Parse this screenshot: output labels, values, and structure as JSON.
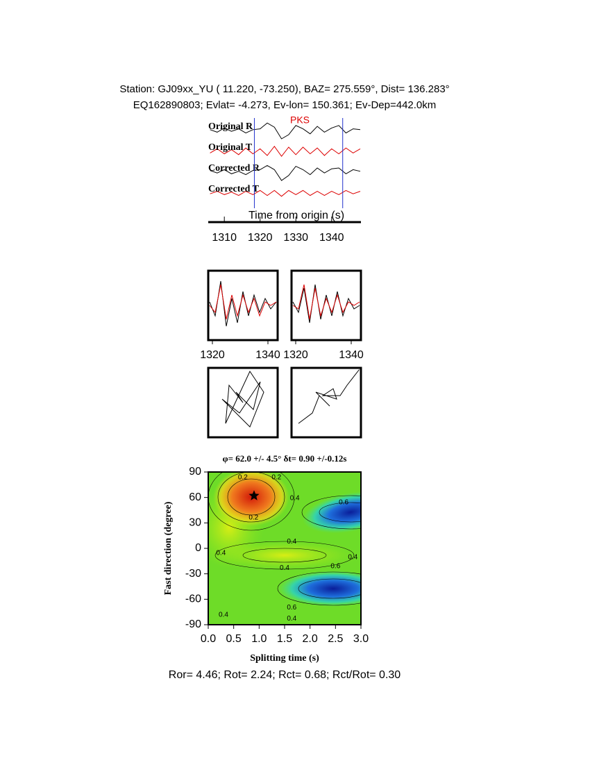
{
  "header": {
    "line1": "Station: GJ09xx_YU (  11.220,  -73.250), BAZ=  275.559°, Dist=  136.283°",
    "line2": "EQ162890803; Evlat=  -4.273, Ev-lon= 150.361; Ev-Dep=442.0km"
  },
  "footer": "Ror= 4.46; Rot= 2.24; Rct= 0.68; Rct/Rot= 0.30",
  "chart_data": [
    {
      "type": "traces",
      "annotation": "PKS",
      "xlabel": "Time from origin (s)",
      "xlim": [
        1305.5,
        1348.2
      ],
      "xticks": [
        1310,
        1320,
        1330,
        1340
      ],
      "markers": [
        1318.4,
        1343.1
      ],
      "x": [
        1306,
        1308,
        1310,
        1312,
        1314,
        1316,
        1318,
        1320,
        1322,
        1324,
        1326,
        1328,
        1330,
        1332,
        1334,
        1336,
        1338,
        1340,
        1342,
        1344,
        1346,
        1348
      ],
      "series": [
        {
          "name": "Original R",
          "color": "#000000",
          "values": [
            0.1,
            -0.2,
            0.3,
            -0.1,
            0.2,
            -0.3,
            0.1,
            0.2,
            0.9,
            0.4,
            -1,
            -0.5,
            0.6,
            0.2,
            -0.4,
            0.5,
            -0.2,
            0.3,
            0.6,
            -0.3,
            0.2,
            0.1
          ]
        },
        {
          "name": "Original T",
          "color": "#dd0000",
          "values": [
            -0.2,
            0.3,
            -0.3,
            0.2,
            -0.4,
            0.4,
            -0.3,
            0.3,
            -0.5,
            0.6,
            -0.6,
            0.5,
            -0.4,
            0.5,
            -0.3,
            0.4,
            -0.5,
            0.3,
            -0.3,
            0.4,
            -0.2,
            0.3
          ]
        },
        {
          "name": "Corrected R",
          "color": "#000000",
          "values": [
            0.2,
            -0.1,
            0.3,
            -0.2,
            0.1,
            -0.3,
            0.2,
            0.3,
            0.8,
            0.3,
            -1,
            -0.4,
            0.7,
            0.3,
            -0.3,
            0.5,
            -0.1,
            0.4,
            0.5,
            -0.2,
            0.3,
            0.1
          ]
        },
        {
          "name": "Corrected T",
          "color": "#dd0000",
          "values": [
            -0.1,
            0.2,
            -0.2,
            0.1,
            -0.3,
            0.2,
            -0.2,
            0.3,
            -0.3,
            0.3,
            -0.4,
            0.3,
            -0.2,
            0.3,
            -0.3,
            0.2,
            -0.3,
            0.2,
            -0.2,
            0.3,
            -0.1,
            0.2
          ]
        }
      ]
    },
    {
      "type": "line",
      "xlim": [
        1318.5,
        1343.5
      ],
      "xticks": [
        1320,
        1340
      ],
      "ylim": [
        -1,
        1
      ],
      "x": [
        1319,
        1321,
        1323,
        1325,
        1327,
        1329,
        1331,
        1333,
        1335,
        1337,
        1339,
        1341,
        1343
      ],
      "series": [
        {
          "color": "#000000",
          "values": [
            0.1,
            -0.3,
            0.7,
            -0.6,
            0.2,
            -0.5,
            0.4,
            -0.3,
            0.3,
            -0.2,
            0.2,
            -0.1,
            0.1
          ]
        },
        {
          "color": "#dd0000",
          "values": [
            0,
            -0.2,
            0.6,
            -0.4,
            0.3,
            -0.3,
            0.3,
            -0.2,
            0.2,
            -0.3,
            0.1,
            0,
            0.1
          ]
        }
      ]
    },
    {
      "type": "line",
      "xlim": [
        1318.5,
        1343.5
      ],
      "xticks": [
        1320,
        1340
      ],
      "ylim": [
        -1,
        1
      ],
      "x": [
        1319,
        1321,
        1323,
        1325,
        1327,
        1329,
        1331,
        1333,
        1335,
        1337,
        1339,
        1341,
        1343
      ],
      "series": [
        {
          "color": "#000000",
          "values": [
            0.1,
            -0.2,
            0.5,
            -0.5,
            0.6,
            -0.4,
            0.3,
            -0.3,
            0.4,
            -0.3,
            0.2,
            -0.1,
            0
          ]
        },
        {
          "color": "#dd0000",
          "values": [
            0,
            -0.1,
            0.6,
            -0.4,
            0.5,
            -0.3,
            0.2,
            -0.2,
            0.3,
            -0.2,
            0.1,
            0,
            0.1
          ]
        }
      ]
    },
    {
      "type": "particle-motion",
      "xlim": [
        -1,
        1
      ],
      "ylim": [
        -1,
        1
      ],
      "x": [
        0,
        -0.4,
        -0.5,
        0.2,
        0.6,
        0.2,
        -0.6,
        -0.1,
        0.5,
        0.3,
        -0.2,
        0
      ],
      "y": [
        0,
        0.5,
        -0.6,
        0.9,
        0.3,
        -0.7,
        0.1,
        -0.3,
        0.6,
        -0.2,
        0.3,
        0
      ]
    },
    {
      "type": "particle-motion",
      "xlim": [
        -1,
        1
      ],
      "ylim": [
        -1,
        1
      ],
      "x": [
        -0.8,
        -0.4,
        -0.2,
        0.1,
        -0.3,
        0.3,
        0.2,
        -0.1,
        0.4,
        0.6,
        0.95
      ],
      "y": [
        -0.6,
        -0.3,
        0.2,
        -0.1,
        0.3,
        0.1,
        0.4,
        0.2,
        0.2,
        0.5,
        0.95
      ]
    },
    {
      "type": "contour",
      "title": "φ= 62.0 +/- 4.5° δt= 0.90 +/-0.12s",
      "xlabel": "Splitting time (s)",
      "ylabel": "Fast direction (degree)",
      "xlim": [
        0,
        3
      ],
      "ylim": [
        -90,
        90
      ],
      "xticks": [
        {
          "value": 0,
          "label": "0.0"
        },
        0.5,
        {
          "value": 1,
          "label": "1.0"
        },
        1.5,
        {
          "value": 2,
          "label": "2.0"
        },
        2.5,
        {
          "value": 3,
          "label": "3.0"
        }
      ],
      "yticks": [
        -90,
        -60,
        -30,
        0,
        30,
        60,
        90
      ],
      "best": {
        "x": 0.9,
        "y": 62
      },
      "contour_labels": [
        {
          "x": 0.68,
          "y": 83.5,
          "value": 0.2
        },
        {
          "x": 1.34,
          "y": 83.5,
          "value": 0.2
        },
        {
          "x": 0.89,
          "y": 36,
          "value": 0.2
        },
        {
          "x": 1.7,
          "y": 59,
          "value": 0.4
        },
        {
          "x": 1.64,
          "y": 8,
          "value": 0.4
        },
        {
          "x": 0.25,
          "y": -5.7,
          "value": 0.4
        },
        {
          "x": 1.5,
          "y": -23,
          "value": 0.4
        },
        {
          "x": 2.84,
          "y": -10.6,
          "value": 0.4
        },
        {
          "x": 2.66,
          "y": 54,
          "value": 0.6
        },
        {
          "x": 2.5,
          "y": -21,
          "value": 0.6
        },
        {
          "x": 1.64,
          "y": -70,
          "value": 0.6
        },
        {
          "x": 1.64,
          "y": -83,
          "value": 0.4
        },
        {
          "x": 0.3,
          "y": -78.5,
          "value": 0.4
        }
      ]
    }
  ]
}
